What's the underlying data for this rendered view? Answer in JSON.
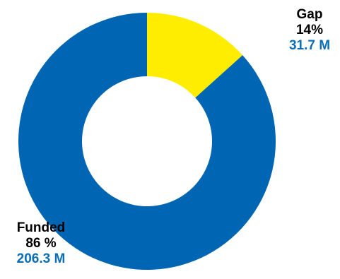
{
  "chart_data": {
    "type": "pie",
    "donut": true,
    "slices": [
      {
        "label": "Gap",
        "percent_label": "14%",
        "value_label": "31.7 M",
        "value": 31.7,
        "percent": 14,
        "color": "#ffed00"
      },
      {
        "label": "Funded",
        "percent_label": "86 %",
        "value_label": "206.3 M",
        "value": 206.3,
        "percent": 86,
        "color": "#0066b3"
      }
    ],
    "value_label_color": "#0a6fb8",
    "legend": "none"
  }
}
